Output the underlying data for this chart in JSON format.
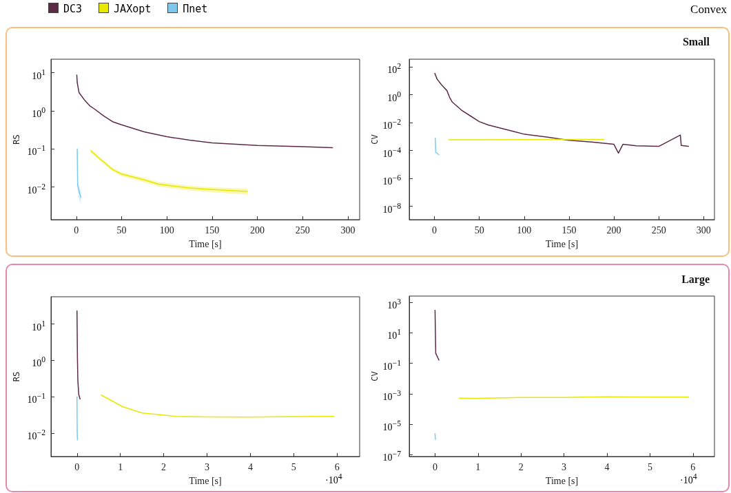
{
  "chart_data": [
    {
      "type": "line",
      "xlabel": "Time [s]",
      "ylabel": "RS",
      "log": "y",
      "legend": "top left",
      "annotations": [
        "Convex"
      ],
      "xlim": [
        -28,
        313
      ],
      "xticks": [
        0,
        50,
        100,
        150,
        200,
        250,
        300
      ],
      "ylim": [
        0.0014,
        22.6
      ],
      "yticks": [
        {
          "value": 0.01,
          "label": "10$^{−2}$"
        },
        {
          "value": 0.1,
          "label": "10$^{−1}$"
        },
        {
          "value": 1,
          "label": "10$^{0}$"
        },
        {
          "value": 10,
          "label": "10$^{1}$"
        }
      ],
      "series": [
        {
          "name": "DC3",
          "color": "#5c2a45",
          "x": [
            0.5,
            1,
            3,
            10,
            15,
            20,
            30,
            40,
            50,
            75,
            100,
            125,
            150,
            200,
            250,
            283
          ],
          "values": [
            8.7,
            5.5,
            3.0,
            1.8,
            1.35,
            1.12,
            0.74,
            0.52,
            0.43,
            0.28,
            0.21,
            0.17,
            0.145,
            0.123,
            0.115,
            0.108
          ]
        },
        {
          "name": "JAXopt",
          "color": "#e8e800",
          "x": [
            16,
            25,
            40,
            50,
            75,
            90,
            100,
            125,
            150,
            189
          ],
          "values": [
            0.089,
            0.058,
            0.029,
            0.022,
            0.0155,
            0.012,
            0.0112,
            0.0095,
            0.0086,
            0.0077
          ],
          "lower": [
            0.08,
            0.052,
            0.026,
            0.0195,
            0.0135,
            0.0104,
            0.0097,
            0.0082,
            0.0073,
            0.0064
          ],
          "upper": [
            0.1,
            0.064,
            0.032,
            0.0245,
            0.0175,
            0.0137,
            0.0128,
            0.0109,
            0.0099,
            0.0091
          ]
        },
        {
          "name": "Πnet",
          "color": "#7ec8f0",
          "x": [
            1,
            1.5,
            3,
            5
          ],
          "values": [
            0.1,
            0.011,
            0.0078,
            0.0054
          ],
          "lower": [
            0.09,
            0.008,
            0.005,
            0.0035
          ],
          "upper": [
            0.11,
            0.014,
            0.011,
            0.008
          ]
        }
      ]
    },
    {
      "type": "line",
      "title": "Small",
      "xlabel": "Time [s]",
      "ylabel": "CV",
      "log": "y",
      "xlim": [
        -28,
        312
      ],
      "xticks": [
        0,
        50,
        100,
        150,
        200,
        250,
        300
      ],
      "ylim": [
        1.1e-09,
        360
      ],
      "yticks": [
        {
          "value": 1e-08,
          "label": "10$^{−8}$"
        },
        {
          "value": 1e-06,
          "label": "10$^{−6}$"
        },
        {
          "value": 0.0001,
          "label": "10$^{−4}$"
        },
        {
          "value": 0.01,
          "label": "10$^{−2}$"
        },
        {
          "value": 1,
          "label": "10$^{0}$"
        },
        {
          "value": 100,
          "label": "10$^{2}$"
        }
      ],
      "series": [
        {
          "color": "#5c2a45",
          "x": [
            0.5,
            3,
            8,
            14,
            17,
            20,
            30,
            40,
            50,
            60,
            75,
            90,
            100,
            125,
            150,
            175,
            200,
            205,
            210,
            225,
            250,
            274,
            275,
            283
          ],
          "values": [
            35,
            13.5,
            5.2,
            2.0,
            0.65,
            0.3,
            0.081,
            0.031,
            0.012,
            0.0069,
            0.0039,
            0.0022,
            0.0015,
            0.00093,
            0.00055,
            0.00041,
            0.00028,
            6.6e-05,
            0.00028,
            0.00022,
            0.0002,
            0.0013,
            0.00023,
            0.0002
          ]
        },
        {
          "color": "#e8e800",
          "x": [
            16,
            50,
            100,
            150,
            189
          ],
          "values": [
            0.00059,
            0.0006,
            0.00062,
            0.00063,
            0.00063
          ]
        },
        {
          "color": "#7ec8f0",
          "x": [
            1,
            1.5,
            3,
            5
          ],
          "values": [
            0.0008,
            7.4e-05,
            6.5e-05,
            5e-05
          ]
        }
      ]
    },
    {
      "type": "line",
      "xlabel": "Time [s]",
      "ylabel": "RS",
      "log": "y",
      "annotations": [
        "·10$^{4}$"
      ],
      "xlim": [
        -0.6,
        6.52
      ],
      "xticks": [
        0,
        1,
        2,
        3,
        4,
        5,
        6
      ],
      "ylim": [
        0.0023,
        56
      ],
      "yticks": [
        {
          "value": 0.01,
          "label": "10$^{−2}$"
        },
        {
          "value": 0.1,
          "label": "10$^{−1}$"
        },
        {
          "value": 1,
          "label": "10$^{0}$"
        },
        {
          "value": 10,
          "label": "10$^{1}$"
        }
      ],
      "series": [
        {
          "color": "#5c2a45",
          "x": [
            0,
            0.01,
            0.02,
            0.04,
            0.07
          ],
          "values": [
            23,
            1.2,
            0.28,
            0.117,
            0.088
          ]
        },
        {
          "color": "#e8e800",
          "x": [
            0.56,
            1.05,
            1.5,
            2.3,
            3,
            4,
            5,
            5.93
          ],
          "values": [
            0.112,
            0.054,
            0.036,
            0.029,
            0.028,
            0.0277,
            0.0286,
            0.029
          ]
        },
        {
          "color": "#7ec8f0",
          "x": [
            0,
            0.005,
            0.01
          ],
          "values": [
            0.1,
            0.0115,
            0.0066
          ]
        }
      ]
    },
    {
      "type": "line",
      "title": "Large",
      "xlabel": "Time [s]",
      "ylabel": "CV",
      "log": "y",
      "annotations": [
        "·10$^{4}$"
      ],
      "xlim": [
        -0.6,
        6.5
      ],
      "xticks": [
        0,
        1,
        2,
        3,
        4,
        5,
        6
      ],
      "ylim": [
        7.6e-08,
        2550
      ],
      "yticks": [
        {
          "value": 1e-07,
          "label": "10$^{−7}$"
        },
        {
          "value": 1e-05,
          "label": "10$^{−5}$"
        },
        {
          "value": 0.001,
          "label": "10$^{−3}$"
        },
        {
          "value": 0.1,
          "label": "10$^{−1}$"
        },
        {
          "value": 10,
          "label": "10$^{1}$"
        },
        {
          "value": 1000,
          "label": "10$^{3}$"
        }
      ],
      "series": [
        {
          "color": "#5c2a45",
          "x": [
            0,
            0.016,
            0.09
          ],
          "values": [
            295,
            0.45,
            0.16
          ]
        },
        {
          "color": "#e8e800",
          "x": [
            0.56,
            1,
            2,
            3,
            4,
            5,
            5.9
          ],
          "values": [
            0.00051,
            0.0005,
            0.00057,
            0.00057,
            0.00063,
            0.0006,
            0.0006
          ]
        },
        {
          "color": "#7ec8f0",
          "x": [
            0,
            0.01
          ],
          "values": [
            2.4e-06,
            1e-06
          ]
        }
      ]
    }
  ]
}
